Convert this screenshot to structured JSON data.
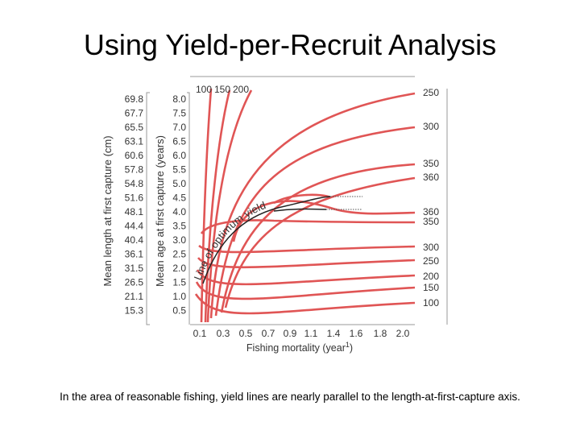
{
  "title": "Using Yield-per-Recruit Analysis",
  "figure": {
    "length_axis_title": "Mean length at first capture (cm)",
    "length_ticks": [
      "69.8",
      "67.7",
      "65.5",
      "63.1",
      "60.6",
      "57.8",
      "54.8",
      "51.6",
      "48.1",
      "44.4",
      "40.4",
      "36.1",
      "31.5",
      "26.5",
      "21.1",
      "15.3"
    ],
    "age_axis_title": "Mean age at first capture (years)",
    "age_ticks": [
      "8.0",
      "7.5",
      "7.0",
      "6.5",
      "6.0",
      "5.5",
      "5.0",
      "4.5",
      "4.0",
      "3.5",
      "3.0",
      "2.5",
      "2.0",
      "1.5",
      "1.0",
      "0.5"
    ],
    "x_axis_title": "Fishing mortality (year",
    "x_axis_exponent": "1",
    "x_axis_close": ")",
    "x_ticks": [
      "0.1",
      "0.3",
      "0.5",
      "0.7",
      "0.9",
      "1.1",
      "1.4",
      "1.6",
      "1.8",
      "2.0"
    ],
    "top_labels": [
      "100",
      "150",
      "200"
    ],
    "right_labels": [
      "250",
      "300",
      "350",
      "360",
      "360",
      "350",
      "300",
      "250",
      "200",
      "150",
      "100"
    ],
    "optimum_line_label": "Line of optimum yield"
  },
  "caption": "In the area of reasonable fishing, yield lines are nearly parallel to the length-at-first-capture axis."
}
